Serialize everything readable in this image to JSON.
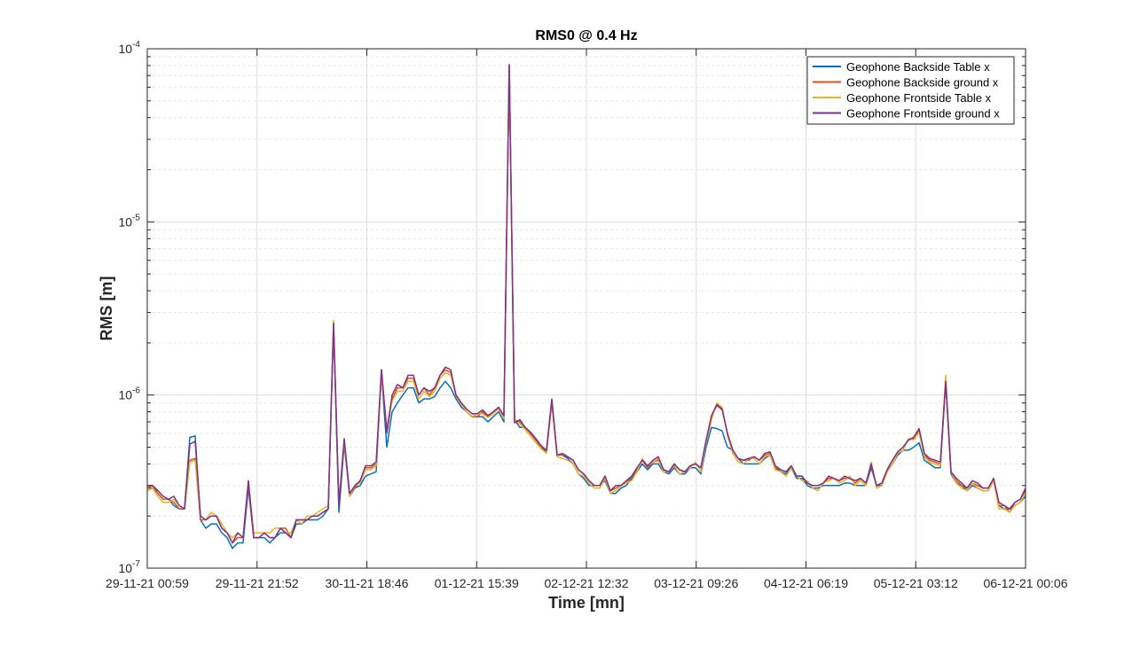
{
  "chart_data": {
    "type": "line",
    "title": "RMS0 @ 0.4 Hz",
    "xlabel": "Time [mn]",
    "ylabel": "RMS [m]",
    "yscale": "log",
    "ylim": [
      1e-07,
      0.0001
    ],
    "y_ticks": [
      {
        "value": 1e-07,
        "base": "10",
        "exp": "-7"
      },
      {
        "value": 1e-06,
        "base": "10",
        "exp": "-6"
      },
      {
        "value": 1e-05,
        "base": "10",
        "exp": "-5"
      },
      {
        "value": 0.0001,
        "base": "10",
        "exp": "-4"
      }
    ],
    "x_ticks": [
      "29-11-21 00:59",
      "29-11-21 21:52",
      "30-11-21 18:46",
      "01-12-21 15:39",
      "02-12-21 12:32",
      "03-12-21 09:26",
      "04-12-21 06:19",
      "05-12-21 03:12",
      "06-12-21 00:06"
    ],
    "grid": true,
    "legend_position": "top-right",
    "colors": [
      "#0072BD",
      "#D95319",
      "#EDB120",
      "#7E2F8E"
    ],
    "series": [
      {
        "name": "Geophone Backside Table x",
        "values": [
          2.9e-07,
          2.9e-07,
          2.7e-07,
          2.5e-07,
          2.5e-07,
          2.3e-07,
          2.2e-07,
          2.2e-07,
          5.7e-07,
          5.8e-07,
          1.9e-07,
          1.7e-07,
          1.8e-07,
          1.8e-07,
          1.6e-07,
          1.5e-07,
          1.3e-07,
          1.4e-07,
          1.4e-07,
          2.9e-07,
          1.5e-07,
          1.5e-07,
          1.5e-07,
          1.4e-07,
          1.5e-07,
          1.6e-07,
          1.6e-07,
          1.5e-07,
          1.8e-07,
          1.8e-07,
          1.9e-07,
          1.9e-07,
          1.9e-07,
          2e-07,
          2.2e-07,
          2.5e-06,
          2.1e-07,
          5.2e-07,
          2.6e-07,
          2.9e-07,
          3e-07,
          3.4e-07,
          3.5e-07,
          3.6e-07,
          1.35e-06,
          5e-07,
          8e-07,
          9e-07,
          1e-06,
          1.1e-06,
          1.1e-06,
          9e-07,
          9.5e-07,
          9.5e-07,
          9.8e-07,
          1.1e-06,
          1.2e-06,
          1.1e-06,
          9.5e-07,
          8.5e-07,
          8e-07,
          7.5e-07,
          7.5e-07,
          7.5e-07,
          7e-07,
          7.5e-07,
          8e-07,
          7e-07,
          8e-05,
          7.2e-07,
          6.5e-07,
          6.5e-07,
          6e-07,
          5.5e-07,
          5e-07,
          4.7e-07,
          9e-07,
          4.5e-07,
          4.5e-07,
          4.3e-07,
          4e-07,
          3.5e-07,
          3.3e-07,
          3e-07,
          3e-07,
          3e-07,
          3.2e-07,
          2.7e-07,
          2.7e-07,
          2.9e-07,
          3e-07,
          3.3e-07,
          3.6e-07,
          4e-07,
          3.7e-07,
          4e-07,
          4e-07,
          3.6e-07,
          3.5e-07,
          3.8e-07,
          3.5e-07,
          3.5e-07,
          3.8e-07,
          3.8e-07,
          3.5e-07,
          5e-07,
          6.5e-07,
          6.4e-07,
          6.2e-07,
          5e-07,
          4.8e-07,
          4.3e-07,
          4e-07,
          4e-07,
          4e-07,
          4e-07,
          4.3e-07,
          4.5e-07,
          3.8e-07,
          3.6e-07,
          3.5e-07,
          3.8e-07,
          3.3e-07,
          3.3e-07,
          3e-07,
          2.9e-07,
          2.9e-07,
          3e-07,
          3e-07,
          3e-07,
          3e-07,
          3.1e-07,
          3.1e-07,
          3e-07,
          3e-07,
          3e-07,
          3.8e-07,
          3e-07,
          3e-07,
          3.6e-07,
          4e-07,
          4.5e-07,
          4.8e-07,
          4.8e-07,
          5e-07,
          5.3e-07,
          4.2e-07,
          4e-07,
          3.8e-07,
          3.8e-07,
          1.2e-06,
          3.5e-07,
          3.1e-07,
          3e-07,
          2.8e-07,
          3e-07,
          2.9e-07,
          2.8e-07,
          2.8e-07,
          3.2e-07,
          2.3e-07,
          2.2e-07,
          2.2e-07,
          2.3e-07,
          2.4e-07,
          2.6e-07
        ]
      },
      {
        "name": "Geophone Backside ground x",
        "values": [
          2.9e-07,
          3e-07,
          2.7e-07,
          2.5e-07,
          2.5e-07,
          2.4e-07,
          2.2e-07,
          2.2e-07,
          4.2e-07,
          4.3e-07,
          1.9e-07,
          1.9e-07,
          2e-07,
          2e-07,
          1.7e-07,
          1.6e-07,
          1.4e-07,
          1.5e-07,
          1.5e-07,
          3.1e-07,
          1.5e-07,
          1.5e-07,
          1.6e-07,
          1.5e-07,
          1.5e-07,
          1.7e-07,
          1.7e-07,
          1.5e-07,
          1.9e-07,
          1.9e-07,
          1.9e-07,
          2e-07,
          2e-07,
          2.1e-07,
          2.2e-07,
          2.6e-06,
          2.3e-07,
          5.5e-07,
          2.7e-07,
          2.9e-07,
          3.2e-07,
          3.8e-07,
          3.8e-07,
          4e-07,
          1.4e-06,
          6e-07,
          9.5e-07,
          1.1e-06,
          1.1e-06,
          1.25e-06,
          1.25e-06,
          1e-06,
          1.1e-06,
          1e-06,
          1.1e-06,
          1.3e-06,
          1.4e-06,
          1.35e-06,
          1e-06,
          9e-07,
          8e-07,
          7.5e-07,
          7.5e-07,
          8e-07,
          7.5e-07,
          8e-07,
          8.5e-07,
          7.5e-07,
          8e-05,
          7.2e-07,
          7e-07,
          6.5e-07,
          6e-07,
          5.5e-07,
          5e-07,
          4.8e-07,
          9.5e-07,
          4.5e-07,
          4.5e-07,
          4.4e-07,
          4.2e-07,
          3.7e-07,
          3.5e-07,
          3.2e-07,
          3e-07,
          3e-07,
          3.4e-07,
          2.8e-07,
          2.9e-07,
          3e-07,
          3.1e-07,
          3.4e-07,
          3.7e-07,
          4.2e-07,
          3.8e-07,
          4.1e-07,
          4.2e-07,
          3.7e-07,
          3.6e-07,
          4e-07,
          3.7e-07,
          3.6e-07,
          3.9e-07,
          4e-07,
          3.8e-07,
          5.5e-07,
          7.5e-07,
          8.7e-07,
          8.2e-07,
          6e-07,
          4.8e-07,
          4.3e-07,
          4.2e-07,
          4.2e-07,
          4.4e-07,
          4.2e-07,
          4.5e-07,
          4.6e-07,
          3.8e-07,
          3.7e-07,
          3.6e-07,
          3.9e-07,
          3.4e-07,
          3.4e-07,
          3.1e-07,
          3e-07,
          3e-07,
          3.1e-07,
          3.3e-07,
          3.3e-07,
          3.2e-07,
          3.3e-07,
          3.3e-07,
          3.1e-07,
          3.3e-07,
          3.1e-07,
          3.9e-07,
          3e-07,
          3.1e-07,
          3.7e-07,
          4.2e-07,
          4.7e-07,
          5e-07,
          5.5e-07,
          5.6e-07,
          6.3e-07,
          4.5e-07,
          4.2e-07,
          4.1e-07,
          4e-07,
          1.2e-06,
          3.6e-07,
          3.2e-07,
          3e-07,
          2.9e-07,
          3.1e-07,
          3e-07,
          2.9e-07,
          2.9e-07,
          3.3e-07,
          2.3e-07,
          2.3e-07,
          2.1e-07,
          2.4e-07,
          2.5e-07,
          2.8e-07
        ]
      },
      {
        "name": "Geophone Frontside Table x",
        "values": [
          2.8e-07,
          2.9e-07,
          2.6e-07,
          2.4e-07,
          2.4e-07,
          2.5e-07,
          2.3e-07,
          2.2e-07,
          4.1e-07,
          4.2e-07,
          2e-07,
          1.9e-07,
          2.1e-07,
          2e-07,
          1.8e-07,
          1.6e-07,
          1.5e-07,
          1.6e-07,
          1.5e-07,
          3.2e-07,
          1.6e-07,
          1.6e-07,
          1.6e-07,
          1.6e-07,
          1.7e-07,
          1.7e-07,
          1.6e-07,
          1.6e-07,
          1.9e-07,
          1.8e-07,
          2e-07,
          2e-07,
          2.1e-07,
          2.2e-07,
          2.3e-07,
          2.7e-06,
          2.4e-07,
          5.4e-07,
          2.6e-07,
          3e-07,
          3.1e-07,
          3.7e-07,
          3.7e-07,
          3.9e-07,
          1.3e-06,
          6.5e-07,
          9.2e-07,
          1.05e-06,
          1.05e-06,
          1.2e-06,
          1.2e-06,
          9.5e-07,
          1.05e-06,
          9.8e-07,
          1.05e-06,
          1.25e-06,
          1.35e-06,
          1.3e-06,
          9.8e-07,
          8.8e-07,
          8e-07,
          7.5e-07,
          7.8e-07,
          7.8e-07,
          7.4e-07,
          7.8e-07,
          8.3e-07,
          7.3e-07,
          8e-05,
          7.2e-07,
          6.8e-07,
          6.3e-07,
          5.8e-07,
          5.3e-07,
          4.9e-07,
          4.6e-07,
          9e-07,
          4.4e-07,
          4.3e-07,
          4.2e-07,
          4e-07,
          3.5e-07,
          3.4e-07,
          3.1e-07,
          2.9e-07,
          2.9e-07,
          3.3e-07,
          2.7e-07,
          2.8e-07,
          3e-07,
          3.1e-07,
          3.2e-07,
          3.6e-07,
          4.3e-07,
          3.9e-07,
          4.1e-07,
          4.3e-07,
          3.6e-07,
          3.6e-07,
          3.9e-07,
          3.5e-07,
          3.6e-07,
          3.8e-07,
          4.1e-07,
          3.6e-07,
          5.3e-07,
          7.2e-07,
          9e-07,
          8.5e-07,
          5.8e-07,
          4.6e-07,
          4.1e-07,
          4e-07,
          4.3e-07,
          4.3e-07,
          4e-07,
          4.4e-07,
          4.5e-07,
          3.7e-07,
          3.6e-07,
          3.4e-07,
          3.8e-07,
          3.4e-07,
          3.2e-07,
          3.2e-07,
          2.9e-07,
          2.8e-07,
          3.1e-07,
          3.2e-07,
          3.3e-07,
          3.1e-07,
          3.2e-07,
          3.4e-07,
          3e-07,
          3.2e-07,
          3e-07,
          4.1e-07,
          2.9e-07,
          3e-07,
          3.6e-07,
          4e-07,
          4.6e-07,
          4.8e-07,
          5.6e-07,
          5.5e-07,
          6.1e-07,
          4.4e-07,
          4.1e-07,
          4e-07,
          3.9e-07,
          1.3e-06,
          3.6e-07,
          3.1e-07,
          2.9e-07,
          2.8e-07,
          3.1e-07,
          2.9e-07,
          2.8e-07,
          2.8e-07,
          3.2e-07,
          2.2e-07,
          2.2e-07,
          2.1e-07,
          2.3e-07,
          2.4e-07,
          2.7e-07
        ]
      },
      {
        "name": "Geophone Frontside ground x",
        "values": [
          3e-07,
          3e-07,
          2.8e-07,
          2.6e-07,
          2.5e-07,
          2.6e-07,
          2.3e-07,
          2.2e-07,
          5.2e-07,
          5.4e-07,
          2e-07,
          1.9e-07,
          2e-07,
          2e-07,
          1.7e-07,
          1.6e-07,
          1.4e-07,
          1.6e-07,
          1.5e-07,
          3.2e-07,
          1.5e-07,
          1.5e-07,
          1.6e-07,
          1.5e-07,
          1.5e-07,
          1.7e-07,
          1.6e-07,
          1.5e-07,
          1.9e-07,
          1.9e-07,
          1.9e-07,
          2e-07,
          2e-07,
          2.1e-07,
          2.2e-07,
          2.6e-06,
          2.3e-07,
          5.6e-07,
          2.7e-07,
          3e-07,
          3.2e-07,
          3.9e-07,
          3.9e-07,
          4.1e-07,
          1.4e-06,
          6.1e-07,
          1e-06,
          1.15e-06,
          1.1e-06,
          1.3e-06,
          1.3e-06,
          1e-06,
          1.1e-06,
          1.05e-06,
          1.1e-06,
          1.3e-06,
          1.45e-06,
          1.4e-06,
          1e-06,
          9e-07,
          8.3e-07,
          7.8e-07,
          7.8e-07,
          8.2e-07,
          7.6e-07,
          8e-07,
          8.5e-07,
          7.6e-07,
          8.1e-05,
          6.9e-07,
          7.2e-07,
          6.5e-07,
          6.1e-07,
          5.6e-07,
          5.1e-07,
          4.8e-07,
          9.4e-07,
          4.5e-07,
          4.6e-07,
          4.4e-07,
          4.2e-07,
          3.7e-07,
          3.5e-07,
          3.2e-07,
          3e-07,
          3e-07,
          3.4e-07,
          2.8e-07,
          3e-07,
          3e-07,
          3.2e-07,
          3.4e-07,
          3.8e-07,
          4.2e-07,
          3.9e-07,
          4.2e-07,
          4.4e-07,
          3.7e-07,
          3.6e-07,
          4e-07,
          3.7e-07,
          3.6e-07,
          3.9e-07,
          4e-07,
          3.8e-07,
          5.5e-07,
          7.6e-07,
          8.8e-07,
          8.3e-07,
          6e-07,
          4.8e-07,
          4.3e-07,
          4.2e-07,
          4.3e-07,
          4.4e-07,
          4.2e-07,
          4.6e-07,
          4.7e-07,
          3.9e-07,
          3.7e-07,
          3.6e-07,
          3.9e-07,
          3.4e-07,
          3.4e-07,
          3.1e-07,
          3e-07,
          3e-07,
          3.1e-07,
          3.4e-07,
          3.3e-07,
          3.2e-07,
          3.4e-07,
          3.3e-07,
          3.2e-07,
          3.3e-07,
          3.1e-07,
          4e-07,
          3e-07,
          3.1e-07,
          3.7e-07,
          4.2e-07,
          4.7e-07,
          5e-07,
          5.5e-07,
          5.7e-07,
          6.4e-07,
          4.6e-07,
          4.3e-07,
          4.2e-07,
          4.1e-07,
          1.2e-06,
          3.6e-07,
          3.3e-07,
          3.1e-07,
          2.9e-07,
          3.2e-07,
          3.1e-07,
          2.9e-07,
          2.9e-07,
          3.3e-07,
          2.4e-07,
          2.3e-07,
          2.2e-07,
          2.4e-07,
          2.5e-07,
          2.9e-07
        ]
      }
    ]
  }
}
